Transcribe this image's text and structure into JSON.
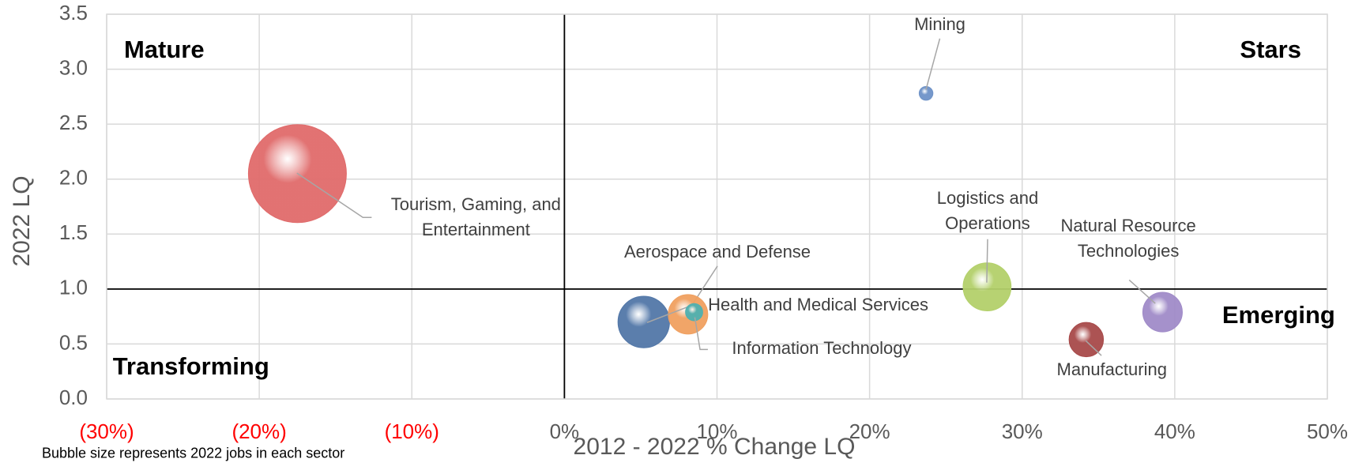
{
  "chart_data": {
    "type": "bubble",
    "x_label": "2012 - 2022 % Change LQ",
    "y_label": "2022 LQ",
    "note": "Bubble size represents 2022 jobs in each sector",
    "xlim": [
      -30,
      50
    ],
    "xticks": [
      {
        "value": -30,
        "label": "(30%)"
      },
      {
        "value": -20,
        "label": "(20%)"
      },
      {
        "value": -10,
        "label": "(10%)"
      },
      {
        "value": 0,
        "label": "0%"
      },
      {
        "value": 10,
        "label": "10%"
      },
      {
        "value": 20,
        "label": "20%"
      },
      {
        "value": 30,
        "label": "30%"
      },
      {
        "value": 40,
        "label": "40%"
      },
      {
        "value": 50,
        "label": "50%"
      }
    ],
    "negative_tick_color": "#ff0000",
    "ylim": [
      0,
      3.5
    ],
    "yticks": [
      {
        "value": 0,
        "label": "0.0"
      },
      0.5,
      {
        "value": 1,
        "label": "1.0"
      },
      1.5,
      {
        "value": 2,
        "label": "2.0"
      },
      2.5,
      {
        "value": 3,
        "label": "3.0"
      },
      3.5
    ],
    "grid": true,
    "divider_x": 0,
    "divider_y": 1.0,
    "quadrants": [
      "Mature",
      "Stars",
      "Transforming",
      "Emerging"
    ],
    "series": [
      {
        "name": "Tourism, Gaming, and Entertainment",
        "color": "#e06b6b",
        "x": [
          -17.5
        ],
        "values": [
          2.05
        ],
        "sizes": [
          325000
        ]
      },
      {
        "name": "Mining",
        "color": "#6f93c8",
        "x": [
          23.7
        ],
        "values": [
          2.78
        ],
        "sizes": [
          6400
        ]
      },
      {
        "name": "Aerospace and Defense",
        "color": "#5277a8",
        "x": [
          5.2
        ],
        "values": [
          0.7
        ],
        "sizes": [
          90000
        ]
      },
      {
        "name": "Health and Medical Services",
        "color": "#f0a060",
        "x": [
          8.1
        ],
        "values": [
          0.77
        ],
        "sizes": [
          53000
        ]
      },
      {
        "name": "Information Technology",
        "color": "#4fb0b0",
        "x": [
          8.5
        ],
        "values": [
          0.79
        ],
        "sizes": [
          10000
        ]
      },
      {
        "name": "Logistics and Operations",
        "color": "#b3d06a",
        "x": [
          27.7
        ],
        "values": [
          1.02
        ],
        "sizes": [
          78000
        ]
      },
      {
        "name": "Natural Resource Technologies",
        "color": "#a08bc8",
        "x": [
          39.2
        ],
        "values": [
          0.79
        ],
        "sizes": [
          53000
        ]
      },
      {
        "name": "Manufacturing",
        "color": "#a84a4a",
        "x": [
          34.2
        ],
        "values": [
          0.54
        ],
        "sizes": [
          40000
        ]
      }
    ]
  }
}
